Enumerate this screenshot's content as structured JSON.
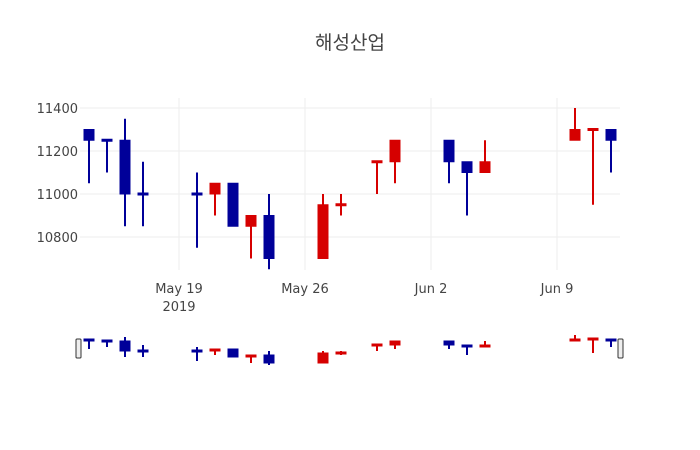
{
  "chart_data": {
    "type": "candlestick",
    "title": "해성산업",
    "xlabel": "",
    "ylabel": "",
    "ylim": [
      10620,
      11420
    ],
    "yticks": [
      10800,
      11000,
      11200,
      11400
    ],
    "xticks": [
      {
        "label": "May 19",
        "sublabel": "2019",
        "date": "2019-05-19"
      },
      {
        "label": "May 26",
        "sublabel": "",
        "date": "2019-05-26"
      },
      {
        "label": "Jun 2",
        "sublabel": "",
        "date": "2019-06-02"
      },
      {
        "label": "Jun 9",
        "sublabel": "",
        "date": "2019-06-09"
      }
    ],
    "increasing_color": "#d60000",
    "decreasing_color": "#000099",
    "grid": true,
    "rangeslider": true,
    "x": [
      "2019-05-14",
      "2019-05-15",
      "2019-05-16",
      "2019-05-17",
      "2019-05-20",
      "2019-05-21",
      "2019-05-22",
      "2019-05-23",
      "2019-05-24",
      "2019-05-27",
      "2019-05-28",
      "2019-05-30",
      "2019-05-31",
      "2019-06-03",
      "2019-06-04",
      "2019-06-05",
      "2019-06-10",
      "2019-06-11",
      "2019-06-12"
    ],
    "open": [
      11300,
      11250,
      11250,
      11000,
      11000,
      11000,
      11050,
      10850,
      10900,
      10700,
      10950,
      11150,
      11150,
      11250,
      11150,
      11100,
      11250,
      11300,
      11300
    ],
    "high": [
      11300,
      11250,
      11350,
      11150,
      11100,
      11050,
      11050,
      10900,
      11000,
      11000,
      11000,
      11150,
      11250,
      11250,
      11150,
      11250,
      11400,
      11300,
      11300
    ],
    "low": [
      11050,
      11100,
      10850,
      10850,
      10750,
      10900,
      10850,
      10700,
      10650,
      10700,
      10900,
      11000,
      11050,
      11050,
      10900,
      11100,
      11250,
      10950,
      11100
    ],
    "close": [
      11250,
      11250,
      11000,
      11000,
      11000,
      11050,
      10850,
      10900,
      10700,
      10950,
      10950,
      11150,
      11250,
      11150,
      11100,
      11150,
      11300,
      11300,
      11250
    ],
    "direction": [
      "dec",
      "dec",
      "dec",
      "dec",
      "dec",
      "inc",
      "dec",
      "inc",
      "dec",
      "inc",
      "inc",
      "inc",
      "inc",
      "dec",
      "dec",
      "inc",
      "inc",
      "inc",
      "dec"
    ]
  }
}
